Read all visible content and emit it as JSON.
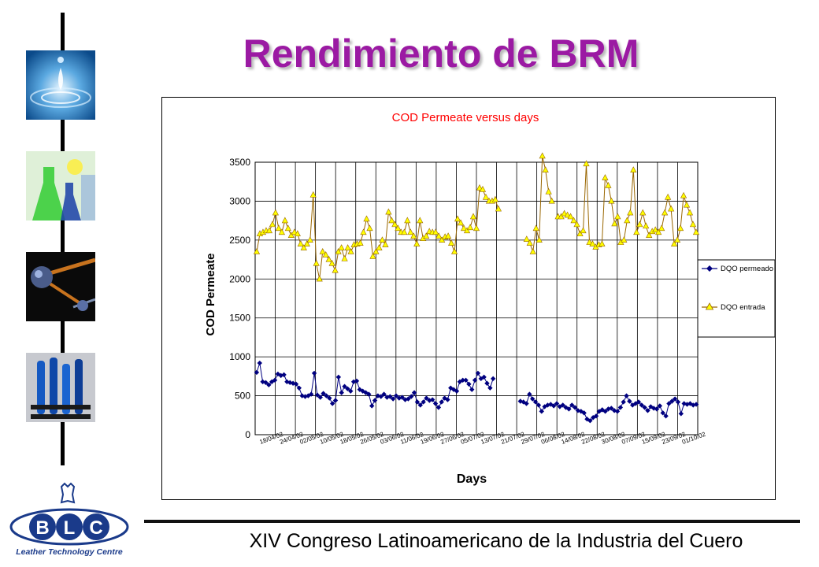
{
  "slide": {
    "title": "Rendimiento de BRM",
    "footer": "XIV Congreso Latinoamericano de la Industria del Cuero"
  },
  "logo": {
    "letters": [
      "B",
      "L",
      "C"
    ],
    "tagline": "Leather Technology Centre"
  },
  "sidebar": {
    "images": [
      "water-drop-image",
      "flask-image",
      "molecule-image",
      "test-tubes-image"
    ]
  },
  "colors": {
    "title": "#9b1aa3",
    "series_permeate": "#000080",
    "series_entrada_fill": "#ffff00",
    "series_entrada_line": "#996600",
    "chart_title": "#ff0000"
  },
  "chart_data": {
    "type": "line",
    "title": "COD Permeate versus days",
    "xlabel": "Days",
    "ylabel": "COD Permeate",
    "ylim": [
      0,
      3500
    ],
    "yticks": [
      0,
      500,
      1000,
      1500,
      2000,
      2500,
      3000,
      3500
    ],
    "grid": true,
    "legend_position": "right",
    "x_tick_labels": [
      "18/04/02",
      "24/04/02",
      "02/05/02",
      "10/05/02",
      "18/05/02",
      "26/05/02",
      "03/06/02",
      "11/06/02",
      "19/06/02",
      "27/06/02",
      "05/07/02",
      "13/07/02",
      "21/07/02",
      "29/07/02",
      "06/08/02",
      "14/08/02",
      "22/08/02",
      "30/08/02",
      "07/09/02",
      "15/09/02",
      "23/09/02",
      "01/10/02"
    ],
    "series": [
      {
        "name": "DQO permeado (mg/l)",
        "values": [
          800,
          920,
          680,
          670,
          640,
          680,
          700,
          780,
          760,
          770,
          680,
          670,
          660,
          650,
          600,
          500,
          490,
          500,
          520,
          790,
          510,
          480,
          530,
          500,
          470,
          400,
          440,
          740,
          540,
          620,
          590,
          560,
          680,
          690,
          580,
          560,
          540,
          520,
          370,
          440,
          500,
          490,
          520,
          480,
          490,
          460,
          500,
          470,
          480,
          450,
          460,
          490,
          540,
          420,
          380,
          420,
          470,
          440,
          450,
          400,
          350,
          420,
          470,
          450,
          600,
          580,
          560,
          680,
          700,
          700,
          650,
          580,
          700,
          790,
          720,
          740,
          660,
          600,
          720,
          null,
          null,
          null,
          null,
          null,
          null,
          null,
          null,
          430,
          420,
          400,
          520,
          460,
          420,
          380,
          300,
          360,
          380,
          390,
          370,
          400,
          360,
          380,
          350,
          330,
          380,
          350,
          310,
          300,
          280,
          200,
          180,
          220,
          240,
          300,
          320,
          300,
          330,
          340,
          310,
          300,
          350,
          420,
          500,
          430,
          380,
          400,
          420,
          380,
          350,
          310,
          360,
          340,
          330,
          370,
          280,
          240,
          400,
          430,
          460,
          420,
          270,
          400,
          390,
          400,
          380,
          390
        ],
        "color": "#000080",
        "marker": "diamond"
      },
      {
        "name": "DQO entrada",
        "values": [
          2350,
          2580,
          2600,
          2620,
          2620,
          2700,
          2850,
          2650,
          2600,
          2750,
          2650,
          2560,
          2600,
          2580,
          2450,
          2400,
          2450,
          2500,
          3080,
          2200,
          2000,
          2350,
          2310,
          2250,
          2200,
          2110,
          2350,
          2400,
          2260,
          2400,
          2350,
          2440,
          2450,
          2460,
          2600,
          2770,
          2650,
          2290,
          2350,
          2400,
          2500,
          2440,
          2860,
          2750,
          2700,
          2650,
          2600,
          2600,
          2750,
          2600,
          2550,
          2450,
          2750,
          2520,
          2550,
          2610,
          2600,
          2600,
          2550,
          2500,
          2540,
          2550,
          2460,
          2350,
          2770,
          2720,
          2650,
          2620,
          2660,
          2800,
          2650,
          3170,
          3150,
          3050,
          3000,
          3000,
          3020,
          2900,
          null,
          null,
          null,
          null,
          null,
          null,
          null,
          null,
          2510,
          2460,
          2350,
          2650,
          2500,
          3580,
          3400,
          3120,
          3000,
          null,
          2800,
          2800,
          2840,
          2820,
          2800,
          2750,
          2700,
          2580,
          2620,
          3480,
          2470,
          2450,
          2410,
          2440,
          2450,
          3300,
          3200,
          3000,
          2710,
          2800,
          2470,
          2500,
          2750,
          2850,
          3400,
          2600,
          2700,
          2850,
          2680,
          2560,
          2610,
          2630,
          2600,
          2650,
          2850,
          3050,
          2900,
          2450,
          2500,
          2650,
          3070,
          2950,
          2850,
          2700,
          2600
        ],
        "color": "#ffff00",
        "marker": "triangle"
      }
    ]
  }
}
